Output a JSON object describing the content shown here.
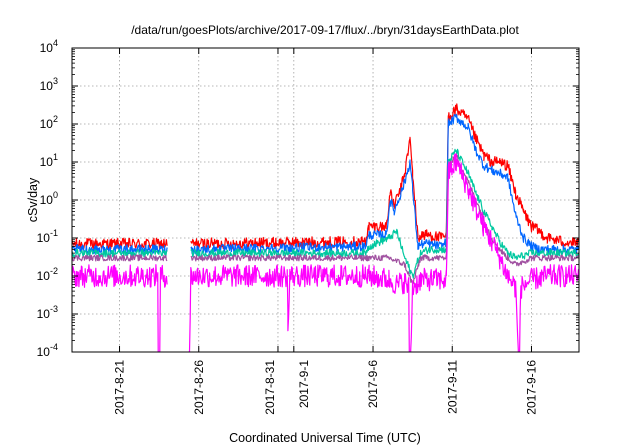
{
  "chart_data": {
    "type": "line",
    "title": "/data/run/goesPlots/archive/2017-09-17/flux/../bryn/31daysEarthData.plot",
    "xlabel": "Coordinated Universal Time (UTC)",
    "ylabel": "cSv/day",
    "yscale": "log",
    "ylim": [
      0.0001,
      10000
    ],
    "xlim": [
      "2017-08-18T00:00",
      "2017-09-19T00:00"
    ],
    "grid": true,
    "legend": "none",
    "x_ticks": [
      {
        "x": "2017-08-21",
        "label": "2017-8-21"
      },
      {
        "x": "2017-08-26",
        "label": "2017-8-26"
      },
      {
        "x": "2017-08-31",
        "label": "2017-8-31"
      },
      {
        "x": "2017-09-01",
        "label": "2017-9-1"
      },
      {
        "x": "2017-09-06",
        "label": "2017-9-6"
      },
      {
        "x": "2017-09-11",
        "label": "2017-9-11"
      },
      {
        "x": "2017-09-16",
        "label": "2017-9-16"
      }
    ],
    "y_ticks": [
      {
        "value": 0.0001,
        "base": "10",
        "exp": "-4"
      },
      {
        "value": 0.001,
        "base": "10",
        "exp": "-3"
      },
      {
        "value": 0.01,
        "base": "10",
        "exp": "-2"
      },
      {
        "value": 0.1,
        "base": "10",
        "exp": "-1"
      },
      {
        "value": 1,
        "base": "10",
        "exp": "0"
      },
      {
        "value": 10,
        "base": "10",
        "exp": "1"
      },
      {
        "value": 100,
        "base": "10",
        "exp": "2"
      },
      {
        "value": 1000,
        "base": "10",
        "exp": "3"
      },
      {
        "value": 10000,
        "base": "10",
        "exp": "4"
      }
    ],
    "series": [
      {
        "color": "#ff0000",
        "noise": 0.15,
        "x": [
          "2017-08-18T00:00",
          "2017-08-24T00:00",
          "2017-08-24T04:00",
          "2017-08-25T04:00",
          "2017-08-25T12:00",
          "2017-09-05T12:00",
          "2017-09-05T18:00",
          "2017-09-06T20:00",
          "2017-09-07T02:00",
          "2017-09-07T08:00",
          "2017-09-07T18:00",
          "2017-09-08T00:00",
          "2017-09-08T08:00",
          "2017-09-08T12:00",
          "2017-09-08T20:00",
          "2017-09-09T02:00",
          "2017-09-09T12:00",
          "2017-09-10T08:00",
          "2017-09-10T15:00",
          "2017-09-10T18:00",
          "2017-09-11T06:00",
          "2017-09-12T00:00",
          "2017-09-12T12:00",
          "2017-09-13T00:00",
          "2017-09-13T12:00",
          "2017-09-14T00:00",
          "2017-09-14T12:00",
          "2017-09-15T00:00",
          "2017-09-15T12:00",
          "2017-09-16T00:00",
          "2017-09-16T12:00",
          "2017-09-17T00:00",
          "2017-09-18T00:00",
          "2017-09-19T00:00"
        ],
        "y": [
          0.07,
          0.07,
          null,
          null,
          0.07,
          0.08,
          0.2,
          0.2,
          1.5,
          0.7,
          2,
          5,
          40,
          5,
          0.1,
          0.12,
          0.12,
          0.1,
          0.12,
          150,
          250,
          130,
          40,
          15,
          10,
          10,
          8,
          1.5,
          0.5,
          0.2,
          0.15,
          0.1,
          0.08,
          0.07
        ]
      },
      {
        "color": "#0066ff",
        "noise": 0.12,
        "x": [
          "2017-08-18T00:00",
          "2017-08-24T00:00",
          "2017-08-24T04:00",
          "2017-08-25T04:00",
          "2017-08-25T12:00",
          "2017-09-05T12:00",
          "2017-09-05T18:00",
          "2017-09-06T20:00",
          "2017-09-07T02:00",
          "2017-09-07T08:00",
          "2017-09-07T18:00",
          "2017-09-08T00:00",
          "2017-09-08T08:00",
          "2017-09-08T12:00",
          "2017-09-08T20:00",
          "2017-09-09T02:00",
          "2017-09-09T12:00",
          "2017-09-10T08:00",
          "2017-09-10T15:00",
          "2017-09-10T18:00",
          "2017-09-11T06:00",
          "2017-09-12T00:00",
          "2017-09-12T12:00",
          "2017-09-13T00:00",
          "2017-09-13T12:00",
          "2017-09-14T00:00",
          "2017-09-14T12:00",
          "2017-09-15T00:00",
          "2017-09-15T12:00",
          "2017-09-16T00:00",
          "2017-09-16T12:00",
          "2017-09-17T00:00",
          "2017-09-18T00:00",
          "2017-09-19T00:00"
        ],
        "y": [
          0.05,
          0.05,
          null,
          null,
          0.05,
          0.06,
          0.12,
          0.12,
          1,
          0.5,
          1.5,
          3,
          10,
          2,
          0.06,
          0.07,
          0.07,
          0.06,
          0.08,
          100,
          150,
          80,
          20,
          8,
          6,
          5,
          4,
          0.4,
          0.1,
          0.06,
          0.05,
          0.05,
          0.05,
          0.05
        ]
      },
      {
        "color": "#00c8a0",
        "noise": 0.1,
        "x": [
          "2017-08-18T00:00",
          "2017-08-24T00:00",
          "2017-08-24T04:00",
          "2017-08-25T04:00",
          "2017-08-25T12:00",
          "2017-09-05T12:00",
          "2017-09-05T18:00",
          "2017-09-07T00:00",
          "2017-09-07T12:00",
          "2017-09-08T00:00",
          "2017-09-08T12:00",
          "2017-09-09T00:00",
          "2017-09-09T12:00",
          "2017-09-10T15:00",
          "2017-09-10T18:00",
          "2017-09-11T06:00",
          "2017-09-12T00:00",
          "2017-09-12T12:00",
          "2017-09-13T00:00",
          "2017-09-13T12:00",
          "2017-09-14T00:00",
          "2017-09-14T12:00",
          "2017-09-15T00:00",
          "2017-09-16T00:00",
          "2017-09-17T00:00",
          "2017-09-18T00:00",
          "2017-09-19T00:00"
        ],
        "y": [
          0.04,
          0.04,
          null,
          null,
          0.04,
          0.04,
          0.06,
          0.1,
          0.15,
          0.03,
          0.01,
          0.04,
          0.05,
          0.05,
          10,
          20,
          5,
          1.5,
          0.5,
          0.2,
          0.08,
          0.04,
          0.03,
          0.04,
          0.04,
          0.04,
          0.04
        ]
      },
      {
        "color": "#a050a0",
        "noise": 0.08,
        "x": [
          "2017-08-18T00:00",
          "2017-08-24T00:00",
          "2017-08-24T04:00",
          "2017-08-25T04:00",
          "2017-08-25T12:00",
          "2017-09-07T00:00",
          "2017-09-08T00:00",
          "2017-09-08T12:00",
          "2017-09-09T00:00",
          "2017-09-10T15:00",
          "2017-09-10T18:00",
          "2017-09-11T06:00",
          "2017-09-12T00:00",
          "2017-09-12T12:00",
          "2017-09-13T00:00",
          "2017-09-13T12:00",
          "2017-09-14T00:00",
          "2017-09-14T12:00",
          "2017-09-15T00:00",
          "2017-09-16T00:00",
          "2017-09-17T00:00",
          "2017-09-19T00:00"
        ],
        "y": [
          0.03,
          0.03,
          null,
          null,
          0.03,
          0.03,
          0.02,
          0.006,
          0.03,
          0.03,
          8,
          15,
          3,
          1,
          0.3,
          0.1,
          0.05,
          0.03,
          0.02,
          0.03,
          0.03,
          0.03
        ]
      },
      {
        "color": "#ff00ff",
        "noise": 0.3,
        "x": [
          "2017-08-18T00:00",
          "2017-08-23T10:00",
          "2017-08-23T10:30",
          "2017-08-23T13:00",
          "2017-08-23T14:00",
          "2017-08-24T00:00",
          "2017-08-24T04:00",
          "2017-08-25T04:00",
          "2017-08-25T08:00",
          "2017-08-25T10:00",
          "2017-08-25T12:00",
          "2017-08-31T14:00",
          "2017-08-31T15:00",
          "2017-08-31T16:00",
          "2017-08-31T18:00",
          "2017-09-05T18:00",
          "2017-09-07T00:00",
          "2017-09-07T12:00",
          "2017-09-08T00:00",
          "2017-09-08T06:00",
          "2017-09-08T07:00",
          "2017-09-08T09:00",
          "2017-09-08T12:00",
          "2017-09-09T00:00",
          "2017-09-10T15:00",
          "2017-09-10T18:00",
          "2017-09-11T06:00",
          "2017-09-12T00:00",
          "2017-09-12T12:00",
          "2017-09-13T00:00",
          "2017-09-13T12:00",
          "2017-09-14T00:00",
          "2017-09-14T12:00",
          "2017-09-15T00:00",
          "2017-09-15T04:00",
          "2017-09-15T06:00",
          "2017-09-15T08:00",
          "2017-09-16T00:00",
          "2017-09-17T00:00",
          "2017-09-19T00:00"
        ],
        "y": [
          0.01,
          0.01,
          0.0001,
          0.0001,
          0.01,
          0.01,
          null,
          null,
          0.0001,
          0.0001,
          0.01,
          0.01,
          0.0007,
          0.0007,
          0.01,
          0.01,
          0.008,
          0.006,
          0.007,
          0.005,
          0.0001,
          0.0001,
          0.005,
          0.008,
          0.008,
          5,
          10,
          2,
          0.6,
          0.2,
          0.08,
          0.03,
          0.01,
          0.005,
          0.0001,
          0.0001,
          0.005,
          0.008,
          0.01,
          0.01
        ]
      }
    ]
  }
}
